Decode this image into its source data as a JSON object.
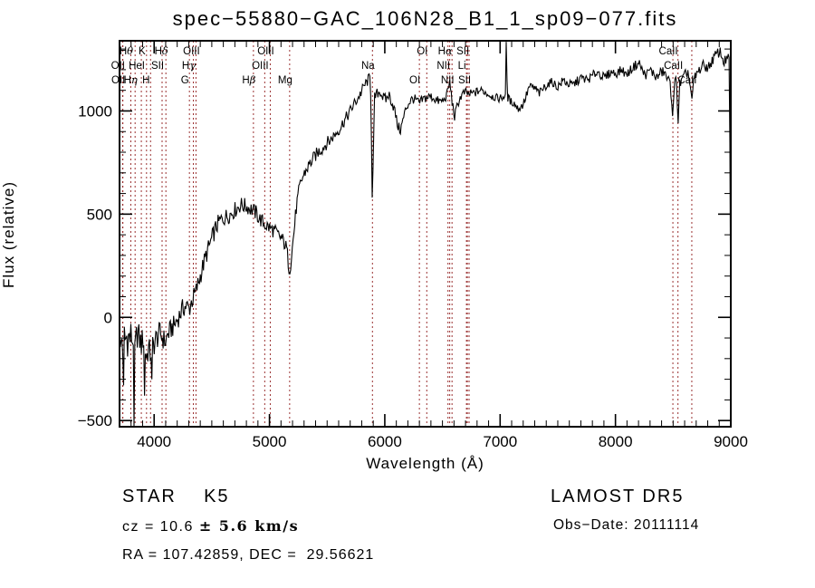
{
  "title": "spec−55880−GAC_106N28_B1_1_sp09−077.fits",
  "chart_data": {
    "type": "line",
    "title": "spec−55880−GAC_106N28_B1_1_sp09−077.fits",
    "xlabel": "Wavelength (Å)",
    "ylabel": "Flux (relative)",
    "xlim": [
      3700,
      9000
    ],
    "ylim": [
      -530,
      1340
    ],
    "xticks": [
      4000,
      5000,
      6000,
      7000,
      8000,
      9000
    ],
    "yticks": [
      -500,
      0,
      500,
      1000
    ],
    "x_minor_step": 100,
    "y_minor_step": 100,
    "grid": false,
    "trace_color": "#000000",
    "line_marker_color": "#9b3232",
    "spectral_lines": [
      {
        "label": "Hθ",
        "wavelength": 3798,
        "row": 1
      },
      {
        "label": "K",
        "wavelength": 3934,
        "row": 1
      },
      {
        "label": "Hδ",
        "wavelength": 4102,
        "row": 1
      },
      {
        "label": "OIII",
        "wavelength": 4363,
        "row": 1
      },
      {
        "label": "OIII",
        "wavelength": 5007,
        "row": 1
      },
      {
        "label": "OI",
        "wavelength": 6364,
        "row": 1
      },
      {
        "label": "Hα",
        "wavelength": 6563,
        "row": 1
      },
      {
        "label": "SII",
        "wavelength": 6716,
        "row": 1
      },
      {
        "label": "CaII",
        "wavelength": 8498,
        "row": 1
      },
      {
        "label": "OII",
        "wavelength": 3726,
        "row": 2
      },
      {
        "label": "HeI",
        "wavelength": 3889,
        "row": 2
      },
      {
        "label": "SII",
        "wavelength": 4069,
        "row": 2
      },
      {
        "label": "Hγ",
        "wavelength": 4340,
        "row": 2
      },
      {
        "label": "OIII",
        "wavelength": 4959,
        "row": 2
      },
      {
        "label": "Na",
        "wavelength": 5893,
        "row": 2
      },
      {
        "label": "NII",
        "wavelength": 6548,
        "row": 2
      },
      {
        "label": "Li",
        "wavelength": 6708,
        "row": 2
      },
      {
        "label": "CaII",
        "wavelength": 8542,
        "row": 2
      },
      {
        "label": "OII",
        "wavelength": 3729,
        "row": 3
      },
      {
        "label": "Hη",
        "wavelength": 3835,
        "row": 3
      },
      {
        "label": "H",
        "wavelength": 3969,
        "row": 3
      },
      {
        "label": "G",
        "wavelength": 4306,
        "row": 3
      },
      {
        "label": "Hβ",
        "wavelength": 4861,
        "row": 3
      },
      {
        "label": "Mg",
        "wavelength": 5175,
        "row": 3
      },
      {
        "label": "OI",
        "wavelength": 6300,
        "row": 3
      },
      {
        "label": "NII",
        "wavelength": 6583,
        "row": 3
      },
      {
        "label": "SII",
        "wavelength": 6731,
        "row": 3
      },
      {
        "label": "CaII",
        "wavelength": 8662,
        "row": 3
      }
    ],
    "spectrum_anchors": [
      [
        3700,
        -60
      ],
      [
        3706,
        -190
      ],
      [
        3712,
        -130
      ],
      [
        3720,
        -90
      ],
      [
        3728,
        -160
      ],
      [
        3736,
        -120
      ],
      [
        3744,
        -70
      ],
      [
        3752,
        -130
      ],
      [
        3760,
        -80
      ],
      [
        3770,
        -120
      ],
      [
        3780,
        -85
      ],
      [
        3790,
        -110
      ],
      [
        3800,
        -75
      ],
      [
        3810,
        -120
      ],
      [
        3820,
        -95
      ],
      [
        3835,
        -160
      ],
      [
        3848,
        -90
      ],
      [
        3860,
        -75
      ],
      [
        3875,
        -110
      ],
      [
        3889,
        -130
      ],
      [
        3905,
        -100
      ],
      [
        3920,
        -145
      ],
      [
        3934,
        -195
      ],
      [
        3950,
        -150
      ],
      [
        3969,
        -180
      ],
      [
        3985,
        -140
      ],
      [
        4000,
        -130
      ],
      [
        4015,
        -105
      ],
      [
        4030,
        -95
      ],
      [
        4050,
        -75
      ],
      [
        4069,
        -95
      ],
      [
        4085,
        -110
      ],
      [
        4102,
        -120
      ],
      [
        4115,
        -85
      ],
      [
        4135,
        -70
      ],
      [
        4155,
        -50
      ],
      [
        4175,
        -40
      ],
      [
        4200,
        -10
      ],
      [
        4225,
        15
      ],
      [
        4250,
        45
      ],
      [
        4280,
        55
      ],
      [
        4305,
        40
      ],
      [
        4320,
        70
      ],
      [
        4340,
        95
      ],
      [
        4360,
        120
      ],
      [
        4380,
        160
      ],
      [
        4400,
        200
      ],
      [
        4425,
        250
      ],
      [
        4450,
        300
      ],
      [
        4475,
        340
      ],
      [
        4500,
        380
      ],
      [
        4525,
        420
      ],
      [
        4550,
        450
      ],
      [
        4575,
        470
      ],
      [
        4600,
        480
      ],
      [
        4630,
        490
      ],
      [
        4660,
        500
      ],
      [
        4690,
        515
      ],
      [
        4720,
        530
      ],
      [
        4750,
        545
      ],
      [
        4780,
        540
      ],
      [
        4810,
        535
      ],
      [
        4840,
        525
      ],
      [
        4861,
        515
      ],
      [
        4885,
        505
      ],
      [
        4910,
        480
      ],
      [
        4935,
        465
      ],
      [
        4960,
        450
      ],
      [
        4985,
        440
      ],
      [
        5010,
        430
      ],
      [
        5040,
        420
      ],
      [
        5070,
        400
      ],
      [
        5100,
        385
      ],
      [
        5125,
        365
      ],
      [
        5150,
        330
      ],
      [
        5175,
        215
      ],
      [
        5195,
        320
      ],
      [
        5215,
        430
      ],
      [
        5235,
        540
      ],
      [
        5260,
        625
      ],
      [
        5285,
        675
      ],
      [
        5310,
        705
      ],
      [
        5340,
        735
      ],
      [
        5370,
        760
      ],
      [
        5400,
        785
      ],
      [
        5430,
        805
      ],
      [
        5460,
        820
      ],
      [
        5490,
        840
      ],
      [
        5520,
        855
      ],
      [
        5550,
        875
      ],
      [
        5580,
        895
      ],
      [
        5610,
        915
      ],
      [
        5640,
        945
      ],
      [
        5670,
        970
      ],
      [
        5700,
        1000
      ],
      [
        5730,
        1030
      ],
      [
        5760,
        1055
      ],
      [
        5790,
        1085
      ],
      [
        5820,
        1120
      ],
      [
        5850,
        1145
      ],
      [
        5875,
        1165
      ],
      [
        5893,
        580
      ],
      [
        5912,
        1065
      ],
      [
        5935,
        1085
      ],
      [
        5960,
        1095
      ],
      [
        5985,
        1065
      ],
      [
        6010,
        1055
      ],
      [
        6035,
        1080
      ],
      [
        6060,
        1045
      ],
      [
        6085,
        1005
      ],
      [
        6110,
        930
      ],
      [
        6135,
        905
      ],
      [
        6160,
        960
      ],
      [
        6185,
        1015
      ],
      [
        6215,
        1045
      ],
      [
        6245,
        1060
      ],
      [
        6275,
        1050
      ],
      [
        6300,
        1035
      ],
      [
        6330,
        1055
      ],
      [
        6360,
        1065
      ],
      [
        6390,
        1070
      ],
      [
        6420,
        1065
      ],
      [
        6450,
        1050
      ],
      [
        6480,
        1045
      ],
      [
        6510,
        1050
      ],
      [
        6540,
        1080
      ],
      [
        6563,
        1145
      ],
      [
        6585,
        1040
      ],
      [
        6605,
        970
      ],
      [
        6630,
        1030
      ],
      [
        6655,
        1065
      ],
      [
        6680,
        1085
      ],
      [
        6705,
        1090
      ],
      [
        6731,
        1080
      ],
      [
        6760,
        1085
      ],
      [
        6790,
        1090
      ],
      [
        6825,
        1100
      ],
      [
        6860,
        1095
      ],
      [
        6900,
        1080
      ],
      [
        6940,
        1070
      ],
      [
        6980,
        1060
      ],
      [
        7020,
        1065
      ],
      [
        7048,
        1080
      ],
      [
        7055,
        1335
      ],
      [
        7062,
        1070
      ],
      [
        7090,
        1045
      ],
      [
        7120,
        1040
      ],
      [
        7155,
        1010
      ],
      [
        7190,
        1025
      ],
      [
        7220,
        1060
      ],
      [
        7250,
        1115
      ],
      [
        7280,
        1115
      ],
      [
        7310,
        1105
      ],
      [
        7340,
        1085
      ],
      [
        7370,
        1105
      ],
      [
        7400,
        1125
      ],
      [
        7430,
        1135
      ],
      [
        7460,
        1140
      ],
      [
        7490,
        1115
      ],
      [
        7520,
        1130
      ],
      [
        7550,
        1150
      ],
      [
        7580,
        1135
      ],
      [
        7610,
        1125
      ],
      [
        7640,
        1130
      ],
      [
        7670,
        1145
      ],
      [
        7700,
        1160
      ],
      [
        7730,
        1155
      ],
      [
        7760,
        1150
      ],
      [
        7790,
        1165
      ],
      [
        7820,
        1180
      ],
      [
        7850,
        1190
      ],
      [
        7880,
        1170
      ],
      [
        7910,
        1160
      ],
      [
        7940,
        1180
      ],
      [
        7970,
        1190
      ],
      [
        8000,
        1180
      ],
      [
        8030,
        1190
      ],
      [
        8060,
        1200
      ],
      [
        8090,
        1175
      ],
      [
        8120,
        1190
      ],
      [
        8150,
        1210
      ],
      [
        8180,
        1225
      ],
      [
        8210,
        1230
      ],
      [
        8240,
        1185
      ],
      [
        8270,
        1175
      ],
      [
        8300,
        1200
      ],
      [
        8330,
        1180
      ],
      [
        8360,
        1160
      ],
      [
        8390,
        1185
      ],
      [
        8420,
        1190
      ],
      [
        8450,
        1155
      ],
      [
        8475,
        1135
      ],
      [
        8498,
        980
      ],
      [
        8515,
        1140
      ],
      [
        8530,
        1160
      ],
      [
        8542,
        940
      ],
      [
        8558,
        1130
      ],
      [
        8580,
        1150
      ],
      [
        8605,
        1175
      ],
      [
        8630,
        1190
      ],
      [
        8662,
        1060
      ],
      [
        8680,
        1150
      ],
      [
        8705,
        1180
      ],
      [
        8730,
        1200
      ],
      [
        8755,
        1220
      ],
      [
        8780,
        1215
      ],
      [
        8805,
        1210
      ],
      [
        8830,
        1235
      ],
      [
        8855,
        1260
      ],
      [
        8880,
        1275
      ],
      [
        8905,
        1290
      ],
      [
        8925,
        1260
      ],
      [
        8945,
        1235
      ],
      [
        8965,
        1255
      ],
      [
        8980,
        1250
      ],
      [
        8990,
        1240
      ],
      [
        8996,
        10
      ]
    ],
    "noise_profile": [
      [
        3700,
        75
      ],
      [
        3850,
        70
      ],
      [
        4000,
        60
      ],
      [
        4200,
        50
      ],
      [
        4400,
        48
      ],
      [
        4600,
        42
      ],
      [
        4800,
        40
      ],
      [
        5000,
        38
      ],
      [
        5200,
        36
      ],
      [
        5400,
        33
      ],
      [
        5600,
        30
      ],
      [
        5800,
        28
      ],
      [
        6000,
        27
      ],
      [
        6200,
        26
      ],
      [
        6400,
        24
      ],
      [
        6600,
        23
      ],
      [
        6800,
        22
      ],
      [
        7000,
        20
      ],
      [
        7200,
        22
      ],
      [
        7400,
        22
      ],
      [
        7600,
        23
      ],
      [
        7800,
        22
      ],
      [
        8000,
        22
      ],
      [
        8200,
        24
      ],
      [
        8400,
        25
      ],
      [
        8600,
        26
      ],
      [
        8800,
        26
      ],
      [
        9000,
        28
      ]
    ],
    "narrow_features": [
      [
        3736,
        -330
      ],
      [
        3825,
        -530
      ],
      [
        3915,
        -380
      ],
      [
        3982,
        -300
      ],
      [
        5175,
        210
      ],
      [
        5893,
        580
      ],
      [
        6563,
        1150
      ],
      [
        7055,
        1335
      ],
      [
        8498,
        975
      ],
      [
        8542,
        940
      ],
      [
        8662,
        1060
      ],
      [
        8996,
        5
      ]
    ]
  },
  "annotations": {
    "class_line": "STAR    K5",
    "cz_prefix": "cz = 10.6 ",
    "cz_value": "± 5.6 km/s",
    "ra_dec": "RA = 107.42859, DEC =  29.56621",
    "survey": "LAMOST DR5",
    "obs_date": "Obs−Date: 20111114"
  }
}
